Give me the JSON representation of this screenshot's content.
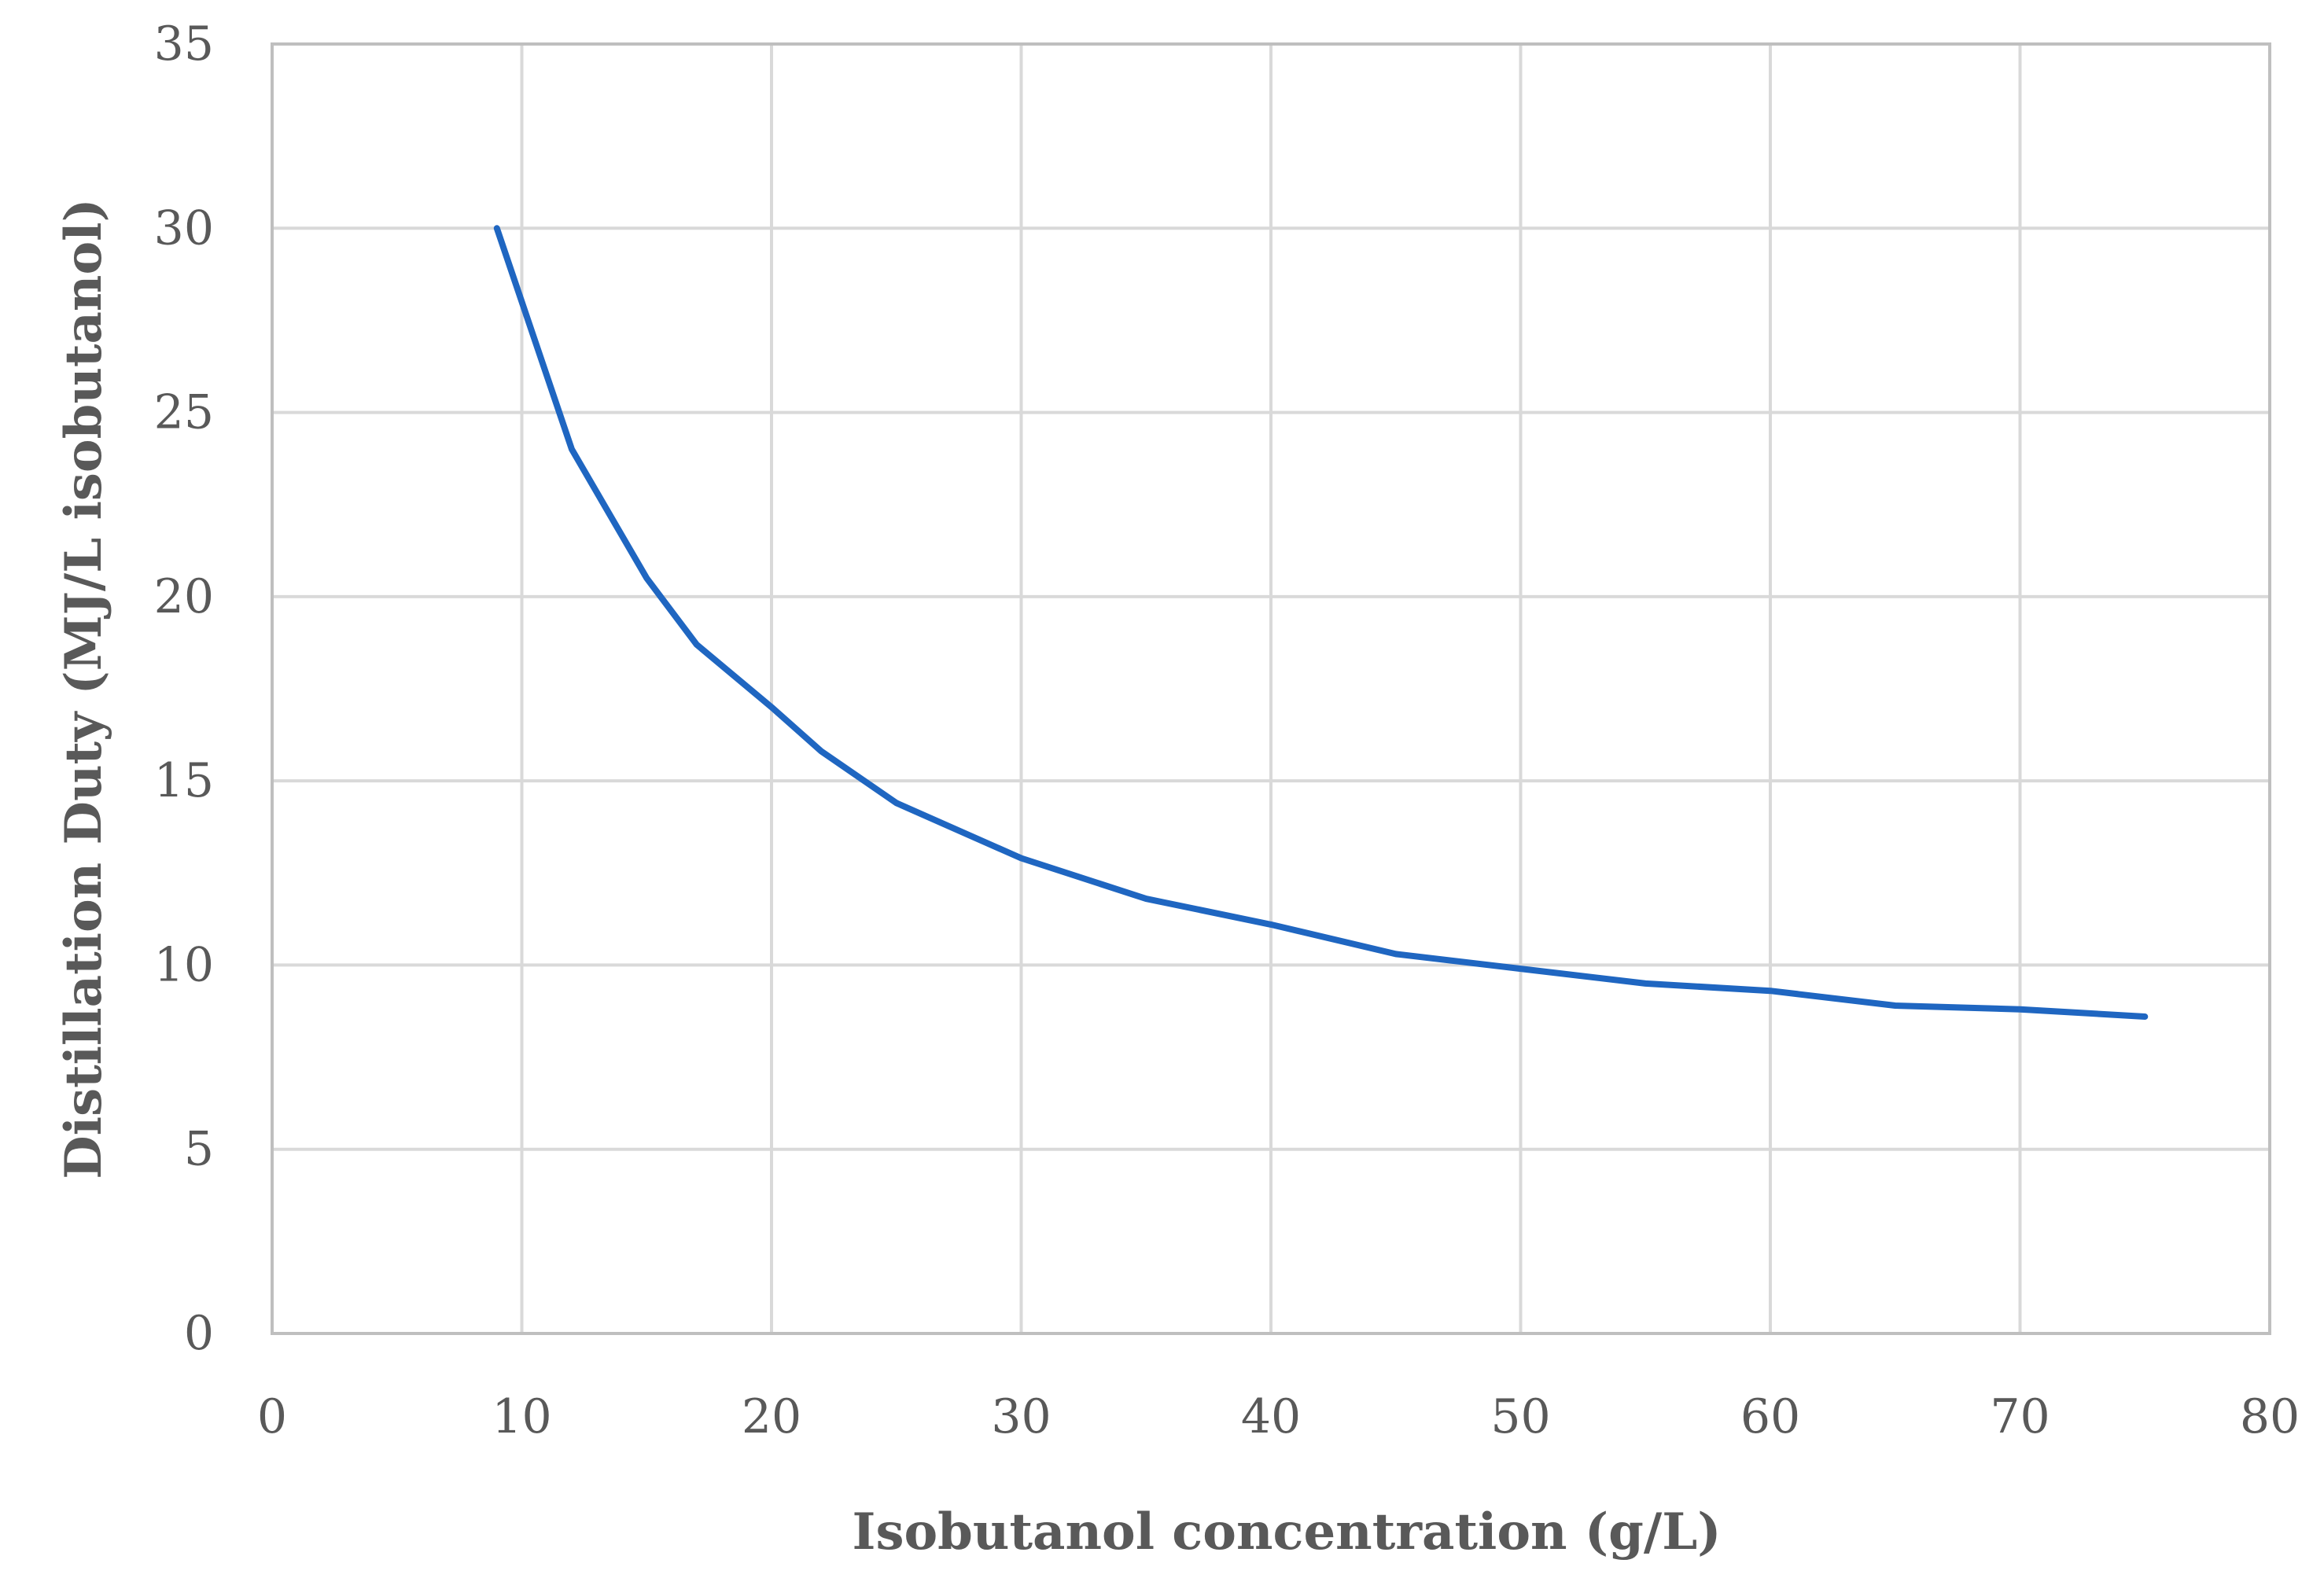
{
  "chart_data": {
    "type": "line",
    "title": "",
    "xlabel": "Isobutanol concentration (g/L)",
    "ylabel": "Distillation Duty (MJ/L isobutanol)",
    "xlim": [
      0,
      80
    ],
    "ylim": [
      0,
      35
    ],
    "x_ticks": [
      0,
      10,
      20,
      30,
      40,
      50,
      60,
      70,
      80
    ],
    "y_ticks": [
      0,
      5,
      10,
      15,
      20,
      25,
      30,
      35
    ],
    "grid": true,
    "legend": "none",
    "series": [
      {
        "color": "#1f66c1",
        "x": [
          9,
          12,
          15,
          17,
          20,
          22,
          25,
          30,
          35,
          40,
          45,
          50,
          55,
          60,
          65,
          70,
          75
        ],
        "y": [
          30.0,
          24.0,
          20.5,
          18.7,
          17.0,
          15.8,
          14.4,
          12.9,
          11.8,
          11.1,
          10.3,
          9.9,
          9.5,
          9.3,
          8.9,
          8.8,
          8.6
        ]
      }
    ]
  }
}
